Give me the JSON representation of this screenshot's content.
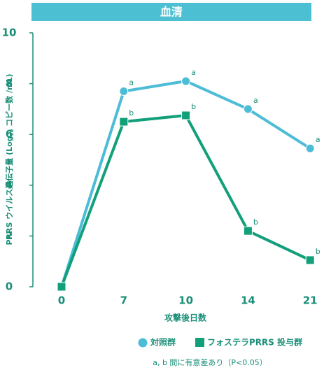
{
  "chart_data": {
    "type": "line",
    "title": "血清",
    "categories": [
      "0",
      "7",
      "10",
      "14",
      "21"
    ],
    "xlabel": "攻撃後日数",
    "ylabel": [
      "PRRS ウイルス遺伝子量 (Log",
      "10",
      " コピー数 /mL)"
    ],
    "ylim": [
      0,
      10
    ],
    "yticks": [
      0,
      2,
      4,
      6,
      8,
      10
    ],
    "series": [
      {
        "name": "対照群",
        "color": "#4dbcd6",
        "marker": "circle",
        "values": [
          0,
          7.7,
          8.1,
          7.0,
          5.45
        ],
        "labels": [
          null,
          "a",
          "a",
          "a",
          "a"
        ]
      },
      {
        "name": "フォステラPRRS 投与群",
        "color": "#11a07a",
        "marker": "square",
        "values": [
          0,
          6.5,
          6.75,
          2.2,
          1.05
        ],
        "labels": [
          null,
          "b",
          "b",
          "b",
          "b"
        ]
      }
    ],
    "footnote": "a, b 間に有意差あり（P<0.05）"
  }
}
